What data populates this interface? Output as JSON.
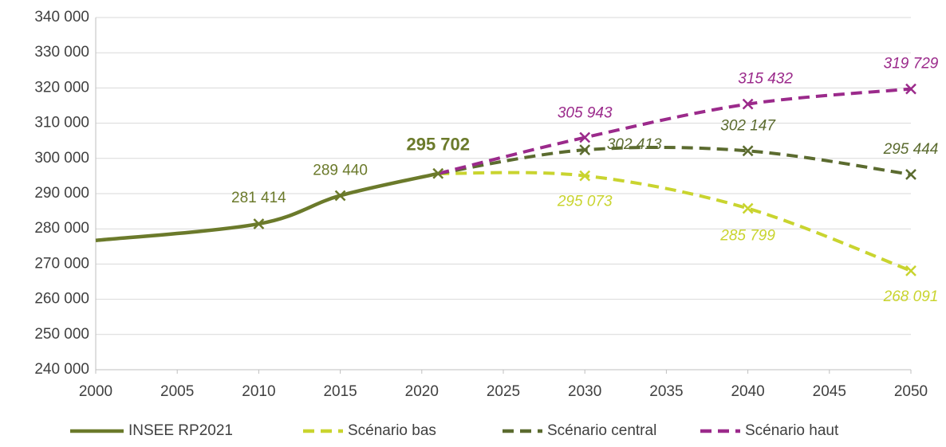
{
  "chart_data": {
    "type": "line",
    "xlim": [
      2000,
      2050
    ],
    "xticks": [
      2000,
      2005,
      2010,
      2015,
      2020,
      2025,
      2030,
      2035,
      2040,
      2045,
      2050
    ],
    "ylim": [
      240000,
      340000
    ],
    "yticks": [
      {
        "value": 240000,
        "label": "240 000"
      },
      {
        "value": 250000,
        "label": "250 000"
      },
      {
        "value": 260000,
        "label": "260 000"
      },
      {
        "value": 270000,
        "label": "270 000"
      },
      {
        "value": 280000,
        "label": "280 000"
      },
      {
        "value": 290000,
        "label": "290 000"
      },
      {
        "value": 300000,
        "label": "300 000"
      },
      {
        "value": 310000,
        "label": "310 000"
      },
      {
        "value": 320000,
        "label": "320 000"
      },
      {
        "value": 330000,
        "label": "330 000"
      },
      {
        "value": 340000,
        "label": "340 000"
      }
    ],
    "grid": true,
    "legend": "bottom",
    "series": [
      {
        "name": "INSEE RP2021",
        "color": "#6b7a2b",
        "dashed": false,
        "x": [
          2000,
          2010,
          2015,
          2021
        ],
        "values": [
          276700,
          281414,
          289440,
          295702
        ],
        "value_labels": [
          null,
          "281 414",
          "289 440",
          "295 702"
        ]
      },
      {
        "name": "Scénario bas",
        "color": "#c9d42f",
        "dashed": true,
        "x": [
          2021,
          2030,
          2040,
          2050
        ],
        "values": [
          295702,
          295073,
          285799,
          268091
        ],
        "value_labels": [
          null,
          "295 073",
          "285 799",
          "268 091"
        ]
      },
      {
        "name": "Scénario central",
        "color": "#5b6b2f",
        "dashed": true,
        "x": [
          2021,
          2030,
          2040,
          2050
        ],
        "values": [
          295702,
          302413,
          302147,
          295444
        ],
        "value_labels": [
          null,
          "302 413",
          "302 147",
          "295 444"
        ]
      },
      {
        "name": "Scénario haut",
        "color": "#9b2a8b",
        "dashed": true,
        "x": [
          2021,
          2030,
          2040,
          2050
        ],
        "values": [
          295702,
          305943,
          315432,
          319729
        ],
        "value_labels": [
          null,
          "305 943",
          "315 432",
          "319 729"
        ]
      }
    ]
  }
}
